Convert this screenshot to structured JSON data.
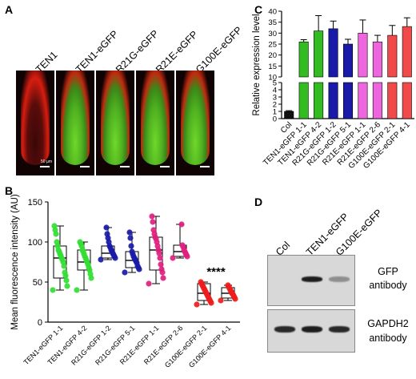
{
  "panel_a": {
    "letter": "A",
    "labels": [
      "TEN1",
      "TEN1-eGFP",
      "R21G-eGFP",
      "R21E-eGFP",
      "G100E-eGFP"
    ],
    "scale_text": "50 µm",
    "images": [
      {
        "green": false
      },
      {
        "green": true
      },
      {
        "green": true
      },
      {
        "green": true
      },
      {
        "green": true
      }
    ]
  },
  "panel_b": {
    "letter": "B",
    "significance": "****"
  },
  "panel_c": {
    "letter": "C",
    "error_low": [
      0.1,
      1.0,
      6.0,
      3.5,
      2.2,
      6.0,
      3.0,
      4.5,
      4.0
    ],
    "error_high": [
      0.1,
      1.0,
      7.0,
      3.5,
      2.2,
      6.0,
      3.0,
      4.5,
      4.0
    ]
  },
  "panel_d": {
    "letter": "D",
    "lanes": [
      "Col",
      "TEN1-eGFP",
      "G100E-eGFP"
    ],
    "blots": [
      {
        "label1": "GFP",
        "label2": "antibody",
        "band_intensity": [
          0.0,
          0.9,
          0.35
        ]
      },
      {
        "label1": "GAPDH2",
        "label2": "antibody",
        "band_intensity": [
          0.85,
          0.9,
          0.85
        ]
      }
    ]
  },
  "chart_data": [
    {
      "type": "box",
      "ylabel": "Mean fluorescence intensity (AU)",
      "ylim": [
        0,
        150
      ],
      "yticks": [
        "0",
        "50",
        "100",
        "150"
      ],
      "categories": [
        "TEN1-eGFP 1-1",
        "TEN1-eGFP 4-2",
        "R21G-eGFP 1-2",
        "R21G-eGFP 5-1",
        "R21E-eGFP 1-1",
        "R21E-eGFP 2-6",
        "G100E-eGFP 2-1",
        "G100E-eGFP 4-1"
      ],
      "colors": [
        "#33dd33",
        "#33dd33",
        "#1a1aa8",
        "#1a1aa8",
        "#e0207f",
        "#e0207f",
        "#ee1c1c",
        "#ee1c1c"
      ],
      "boxes": [
        {
          "min": 40,
          "q1": 55,
          "median": 80,
          "q3": 95,
          "max": 120
        },
        {
          "min": 40,
          "q1": 65,
          "median": 75,
          "q3": 90,
          "max": 100
        },
        {
          "min": 78,
          "q1": 80,
          "median": 86,
          "q3": 95,
          "max": 118
        },
        {
          "min": 62,
          "q1": 68,
          "median": 77,
          "q3": 88,
          "max": 112
        },
        {
          "min": 48,
          "q1": 65,
          "median": 90,
          "q3": 106,
          "max": 132
        },
        {
          "min": 80,
          "q1": 82,
          "median": 88,
          "q3": 96,
          "max": 122
        },
        {
          "min": 22,
          "q1": 27,
          "median": 36,
          "q3": 48,
          "max": 50
        },
        {
          "min": 27,
          "q1": 30,
          "median": 36,
          "q3": 43,
          "max": 46
        }
      ],
      "points": [
        [
          40,
          45,
          52,
          58,
          62,
          70,
          75,
          78,
          80,
          83,
          85,
          88,
          90,
          95,
          100,
          110,
          115,
          120
        ],
        [
          40,
          55,
          60,
          65,
          68,
          72,
          75,
          77,
          80,
          82,
          85,
          88,
          90,
          95,
          98,
          100
        ],
        [
          78,
          80,
          82,
          84,
          86,
          88,
          90,
          93,
          95,
          100,
          105,
          110,
          118
        ],
        [
          62,
          66,
          68,
          70,
          74,
          76,
          78,
          80,
          82,
          85,
          88,
          95,
          105,
          112
        ],
        [
          48,
          55,
          62,
          66,
          72,
          80,
          86,
          90,
          95,
          100,
          104,
          106,
          110,
          115,
          125,
          132
        ],
        [
          80,
          82,
          84,
          86,
          88,
          90,
          94,
          96,
          122
        ],
        [
          22,
          24,
          26,
          28,
          30,
          32,
          34,
          36,
          38,
          40,
          42,
          44,
          46,
          48,
          50
        ],
        [
          27,
          29,
          31,
          33,
          35,
          36,
          38,
          40,
          42,
          44,
          46
        ]
      ]
    },
    {
      "type": "bar",
      "ylabel": "Relative expression level",
      "axis_break": [
        5,
        10
      ],
      "yticks": [
        "0",
        "1",
        "2",
        "3",
        "4",
        "5",
        "10",
        "15",
        "20",
        "25",
        "30",
        "35",
        "40"
      ],
      "categories": [
        "Col",
        "TEN1-eGFP 1-1",
        "TEN1-eGFP 4-2",
        "R21G-eGFP 1-2",
        "R21G-eGFP 5-1",
        "R21E-eGFP 1-1",
        "R21E-eGFP 2-6",
        "G100E-eGFP 2-1",
        "G100E-eGFP 4-1"
      ],
      "values": [
        1.0,
        26,
        31,
        32,
        25,
        30,
        26,
        29,
        33
      ],
      "colors": [
        "#111111",
        "#33bb22",
        "#33bb22",
        "#1a1aa8",
        "#1a1aa8",
        "#ee66dd",
        "#ee66dd",
        "#f04a4a",
        "#f04a4a"
      ]
    }
  ]
}
